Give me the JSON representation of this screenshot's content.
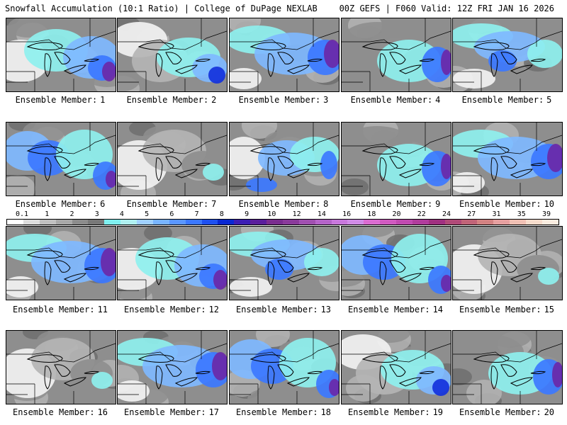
{
  "header": {
    "title": "Snowfall Accumulation (10:1 Ratio) | College of DuPage NEXLAB",
    "run_info": "00Z GEFS | F060 Valid: 12Z FRI JAN 16 2026"
  },
  "member_label_prefix": "Ensemble Member:",
  "members": [
    {
      "number": "1",
      "scheme": 0
    },
    {
      "number": "2",
      "scheme": 1
    },
    {
      "number": "3",
      "scheme": 2
    },
    {
      "number": "4",
      "scheme": 3
    },
    {
      "number": "5",
      "scheme": 4
    },
    {
      "number": "6",
      "scheme": 5
    },
    {
      "number": "7",
      "scheme": 6
    },
    {
      "number": "8",
      "scheme": 7
    },
    {
      "number": "9",
      "scheme": 3
    },
    {
      "number": "10",
      "scheme": 2
    },
    {
      "number": "11",
      "scheme": 2
    },
    {
      "number": "12",
      "scheme": 0
    },
    {
      "number": "13",
      "scheme": 4
    },
    {
      "number": "14",
      "scheme": 5
    },
    {
      "number": "15",
      "scheme": 6
    },
    {
      "number": "16",
      "scheme": 6
    },
    {
      "number": "17",
      "scheme": 2
    },
    {
      "number": "18",
      "scheme": 5
    },
    {
      "number": "19",
      "scheme": 1
    },
    {
      "number": "20",
      "scheme": 3
    }
  ],
  "legend": {
    "labels": [
      "0.1",
      "1",
      "2",
      "3",
      "4",
      "5",
      "6",
      "7",
      "8",
      "9",
      "10",
      "12",
      "14",
      "16",
      "18",
      "20",
      "22",
      "24",
      "27",
      "31",
      "35",
      "39"
    ],
    "colors": [
      "#ffffff",
      "#dcdcdc",
      "#c0c0c0",
      "#a8a8a8",
      "#8c8c8c",
      "#787878",
      "#7ff0f0",
      "#b0f0f0",
      "#a0d0ff",
      "#78b4ff",
      "#5a96ff",
      "#3c78ff",
      "#1e50f0",
      "#0a28d2",
      "#3c1eb4",
      "#5a1e9c",
      "#7a2d8f",
      "#8a3a9a",
      "#a050b0",
      "#b464c8",
      "#c878dc",
      "#d08ce6",
      "#da6cd0",
      "#d05ac0",
      "#c04ab0",
      "#b03c9c",
      "#a03080",
      "#b04a78",
      "#c06478",
      "#d28282",
      "#e6a0a0",
      "#f0c0b4",
      "#f6dccc",
      "#faece0"
    ]
  },
  "colors": {
    "gray_dark": "#6e6e6e",
    "gray_mid": "#8e8e8e",
    "gray_light": "#b4b4b4",
    "white_area": "#f2f2f2",
    "cyan": "#8ef0ee",
    "light_blue": "#7fb8ff",
    "blue": "#3c78ff",
    "dark_blue": "#1432dc",
    "purple": "#6a28a8",
    "outline": "#000000"
  }
}
